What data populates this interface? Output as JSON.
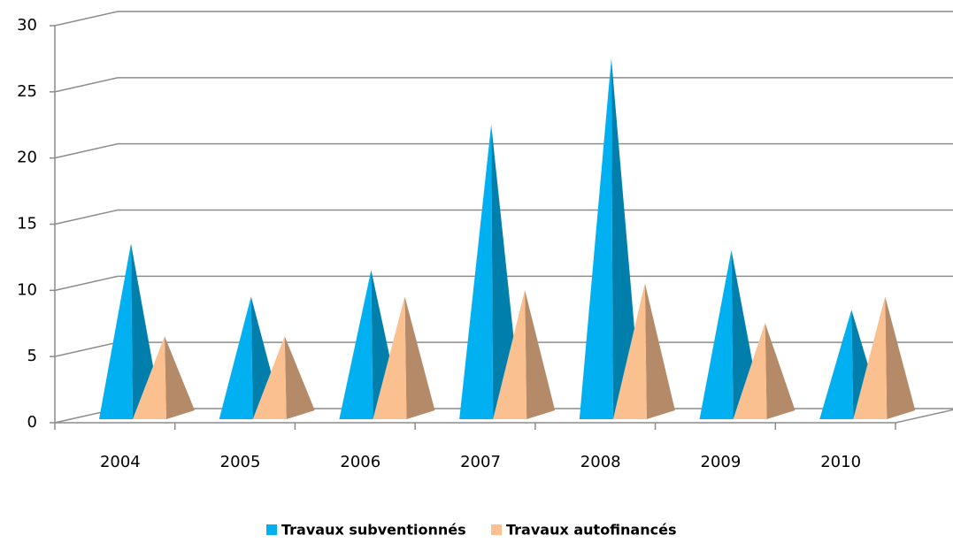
{
  "chart_data": {
    "type": "pyramid3d",
    "categories": [
      "2004",
      "2005",
      "2006",
      "2007",
      "2008",
      "2009",
      "2010"
    ],
    "series": [
      {
        "name": "Travaux subventionnés",
        "color": "#00b0f0",
        "values": [
          13,
          9,
          11,
          22,
          27,
          12.5,
          8
        ]
      },
      {
        "name": "Travaux autofinancés",
        "color": "#fac090",
        "values": [
          6,
          6,
          9,
          9.5,
          10,
          7,
          9
        ]
      }
    ],
    "ylim": [
      0,
      30
    ],
    "yticks": [
      0,
      5,
      10,
      15,
      20,
      25,
      30
    ],
    "grid": true,
    "legend": "bottom"
  }
}
